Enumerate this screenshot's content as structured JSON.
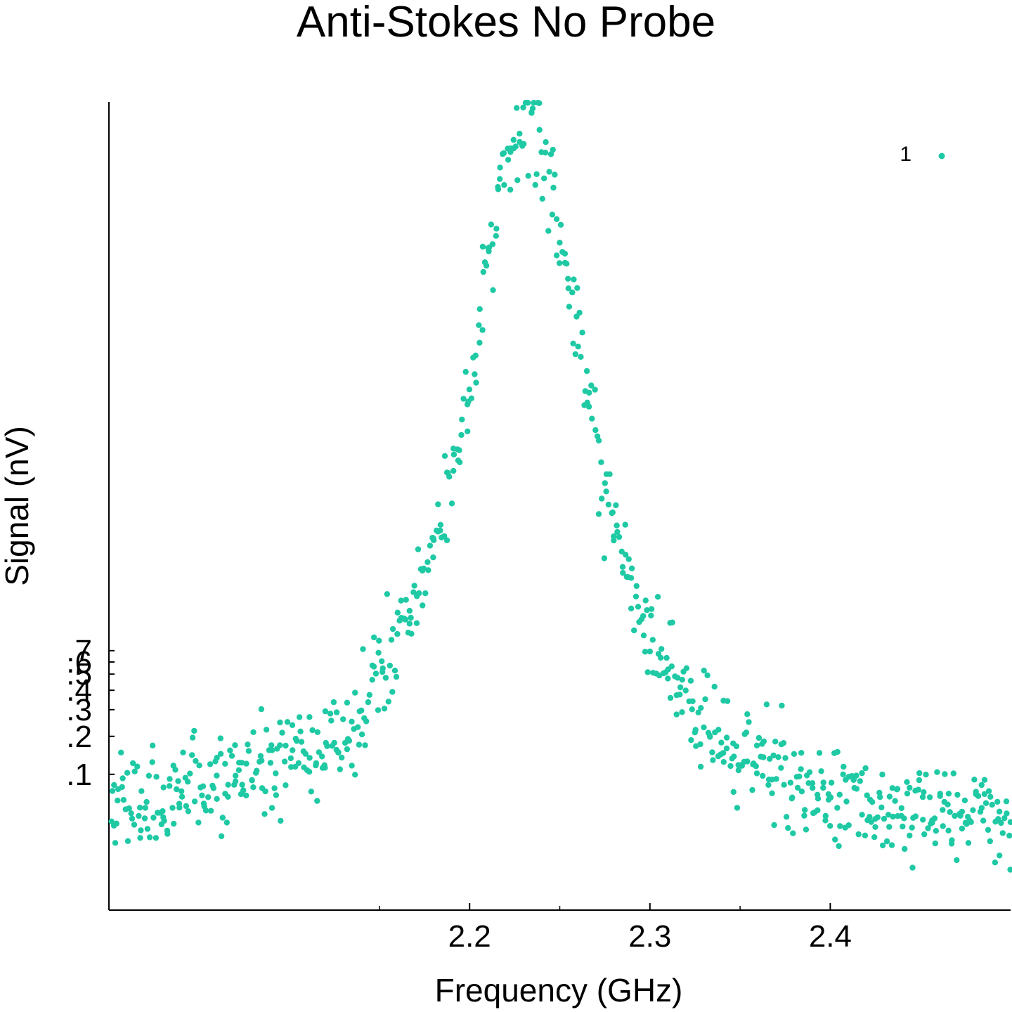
{
  "chart_data": {
    "type": "scatter",
    "title": "Anti-Stokes No Probe",
    "xlabel": "Frequency (GHz)",
    "ylabel": "Signal (nV)",
    "color": "#1ec9a4",
    "grid": false,
    "legend_position": "top-right",
    "legend": [
      "1"
    ],
    "xlim": [
      2.0,
      2.5
    ],
    "xticks": [
      {
        "value": 2.2,
        "label": "2.2"
      },
      {
        "value": 2.3,
        "label": "2.3"
      },
      {
        "value": 2.4,
        "label": "2.4"
      }
    ],
    "ymap": {
      "signal": [
        0,
        0.1,
        0.2,
        0.3,
        0.4,
        0.5,
        0.6,
        0.7
      ],
      "linear": [
        0.074,
        0.168,
        0.215,
        0.248,
        0.272,
        0.292,
        0.307,
        0.321
      ]
    },
    "ylim": [
      0,
      1.0
    ],
    "yticks": [
      {
        "value": 0.1,
        "label": ".1"
      },
      {
        "value": 0.2,
        "label": ".2"
      },
      {
        "value": 0.3,
        "label": ".3"
      },
      {
        "value": 0.4,
        "label": ".4"
      },
      {
        "value": 0.5,
        "label": ".5"
      },
      {
        "value": 0.6,
        "label": ".6"
      },
      {
        "value": 0.7,
        "label": ".7"
      }
    ],
    "peak_center": 2.232,
    "peak_width": 0.047,
    "peak_height": 0.87,
    "baseline_left": 0.12,
    "baseline_right": 0.09,
    "num_points": 720
  }
}
